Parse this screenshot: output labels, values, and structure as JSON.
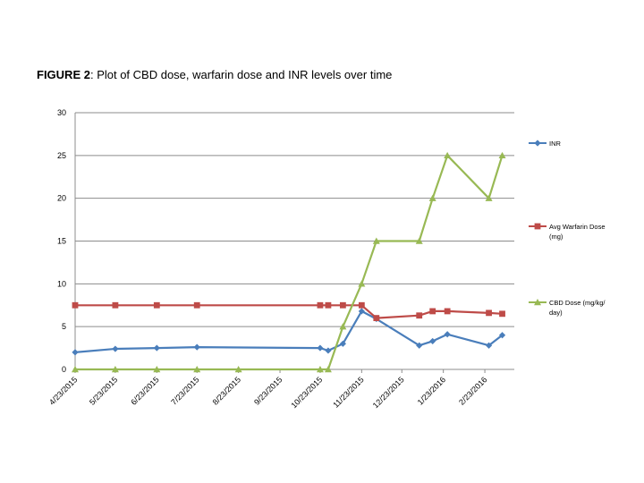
{
  "figure": {
    "label": "FIGURE 2",
    "caption": ": Plot of CBD dose, warfarin dose and INR levels over time"
  },
  "chart_data": {
    "type": "line",
    "title": "FIGURE 2: Plot of CBD dose, warfarin dose and INR levels over time",
    "xlabel": "",
    "ylabel": "",
    "ylim": [
      0,
      30
    ],
    "yticks": [
      0,
      5,
      10,
      15,
      20,
      25,
      30
    ],
    "xlim": [
      "2015-04-23",
      "2016-03-16"
    ],
    "xticks": [
      "2015-04-23",
      "2015-05-23",
      "2015-06-23",
      "2015-07-23",
      "2015-08-23",
      "2015-09-23",
      "2015-10-23",
      "2015-11-23",
      "2015-12-23",
      "2016-01-23",
      "2016-02-23"
    ],
    "xtick_labels": [
      "4/23/2015",
      "5/23/2015",
      "6/23/2015",
      "7/23/2015",
      "8/23/2015",
      "9/23/2015",
      "10/23/2015",
      "11/23/2015",
      "12/23/2015",
      "1/23/2016",
      "2/23/2016"
    ],
    "grid": "horizontal",
    "legend": "right",
    "series": [
      {
        "name": "INR",
        "color": "#4a7ebb",
        "marker": "diamond",
        "points": [
          [
            "2015-04-23",
            2.0
          ],
          [
            "2015-05-23",
            2.4
          ],
          [
            "2015-06-23",
            2.5
          ],
          [
            "2015-07-23",
            2.6
          ],
          [
            "2015-10-23",
            2.5
          ],
          [
            "2015-10-29",
            2.2
          ],
          [
            "2015-11-09",
            3.0
          ],
          [
            "2015-11-23",
            6.8
          ],
          [
            "2015-12-04",
            5.9
          ],
          [
            "2016-01-05",
            2.8
          ],
          [
            "2016-01-15",
            3.3
          ],
          [
            "2016-01-26",
            4.1
          ],
          [
            "2016-02-26",
            2.8
          ],
          [
            "2016-03-07",
            4.0
          ]
        ]
      },
      {
        "name": "Avg Warfarin Dose (mg)",
        "color": "#be4b48",
        "marker": "square",
        "points": [
          [
            "2015-04-23",
            7.5
          ],
          [
            "2015-05-23",
            7.5
          ],
          [
            "2015-06-23",
            7.5
          ],
          [
            "2015-07-23",
            7.5
          ],
          [
            "2015-10-23",
            7.5
          ],
          [
            "2015-10-29",
            7.5
          ],
          [
            "2015-11-09",
            7.5
          ],
          [
            "2015-11-23",
            7.5
          ],
          [
            "2015-12-04",
            6.0
          ],
          [
            "2016-01-05",
            6.3
          ],
          [
            "2016-01-15",
            6.8
          ],
          [
            "2016-01-26",
            6.8
          ],
          [
            "2016-02-26",
            6.6
          ],
          [
            "2016-03-07",
            6.5
          ]
        ]
      },
      {
        "name": "CBD Dose (mg/kg/day)",
        "color": "#98b954",
        "marker": "triangle",
        "points": [
          [
            "2015-04-23",
            0
          ],
          [
            "2015-05-23",
            0
          ],
          [
            "2015-06-23",
            0
          ],
          [
            "2015-07-23",
            0
          ],
          [
            "2015-08-23",
            0
          ],
          [
            "2015-10-23",
            0
          ],
          [
            "2015-10-29",
            0
          ],
          [
            "2015-11-09",
            5
          ],
          [
            "2015-11-23",
            10
          ],
          [
            "2015-12-04",
            15
          ],
          [
            "2016-01-05",
            15
          ],
          [
            "2016-01-15",
            20
          ],
          [
            "2016-01-26",
            25
          ],
          [
            "2016-02-26",
            20
          ],
          [
            "2016-03-07",
            25
          ]
        ]
      }
    ]
  },
  "legend": {
    "items": [
      {
        "lines": [
          "INR"
        ]
      },
      {
        "lines": [
          "Avg Warfarin Dose",
          "(mg)"
        ]
      },
      {
        "lines": [
          "CBD Dose (mg/kg/",
          "day)"
        ]
      }
    ]
  }
}
